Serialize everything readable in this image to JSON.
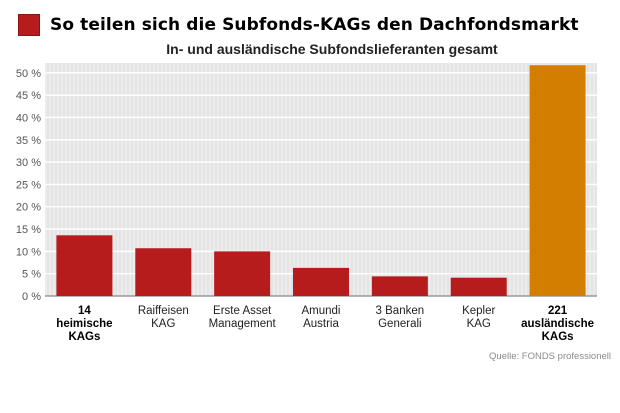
{
  "header": {
    "title": "So teilen sich die Subfonds-KAGs den Dachfondsmarkt",
    "subtitle": "In- und ausländische Subfondslieferanten gesamt"
  },
  "source_note": "Quelle: FONDS professionell",
  "colors": {
    "bar_red": "#b71c1c",
    "bar_orange": "#d47e00",
    "title_square": "#b71c1c"
  },
  "chart_data": {
    "type": "bar",
    "title": "In- und ausländische Subfondslieferanten gesamt",
    "xlabel": "",
    "ylabel": "",
    "ylim": [
      0,
      50
    ],
    "yticks": [
      "0 %",
      "5 %",
      "10 %",
      "15 %",
      "20 %",
      "25 %",
      "30 %",
      "35 %",
      "40 %",
      "45 %",
      "50 %"
    ],
    "categories": [
      {
        "lines": [
          "14",
          "heimische",
          "KAGs"
        ],
        "bold": true
      },
      {
        "lines": [
          "Raiffeisen",
          "KAG"
        ],
        "bold": false
      },
      {
        "lines": [
          "Erste Asset",
          "Management"
        ],
        "bold": false
      },
      {
        "lines": [
          "Amundi",
          "Austria"
        ],
        "bold": false
      },
      {
        "lines": [
          "3 Banken",
          "Generali"
        ],
        "bold": false
      },
      {
        "lines": [
          "Kepler",
          "KAG"
        ],
        "bold": false
      },
      {
        "lines": [
          "221",
          "ausländische",
          "KAGs"
        ],
        "bold": true
      }
    ],
    "values": [
      13.6,
      10.7,
      10.0,
      6.3,
      4.4,
      4.1,
      51.7
    ],
    "bar_colors": [
      "#b71c1c",
      "#b71c1c",
      "#b71c1c",
      "#b71c1c",
      "#b71c1c",
      "#b71c1c",
      "#d47e00"
    ],
    "grid": true,
    "legend": "none"
  }
}
